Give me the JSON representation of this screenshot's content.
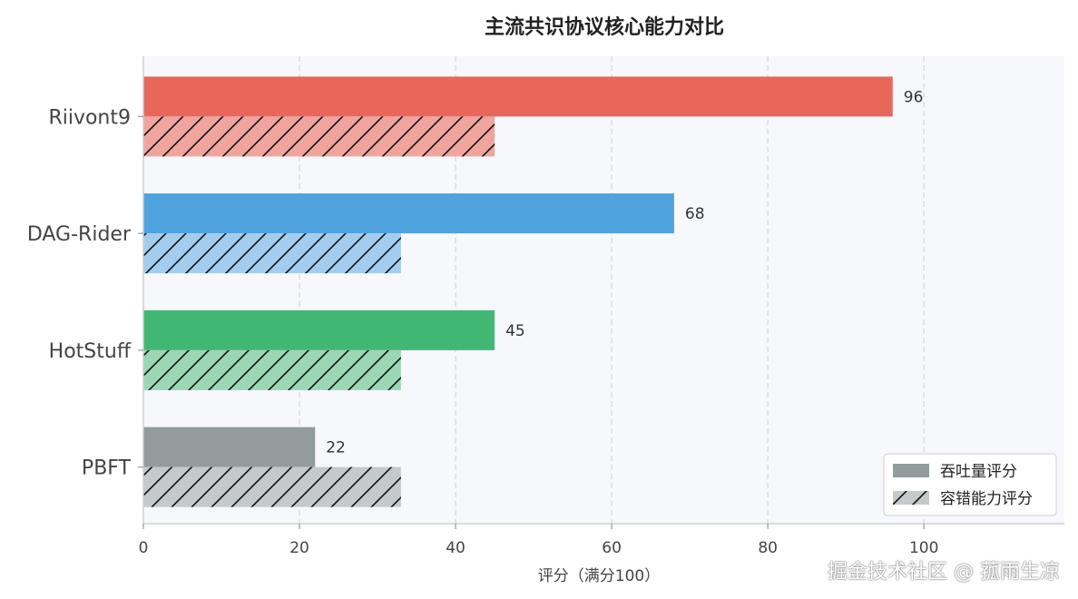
{
  "chart_data": {
    "type": "bar",
    "orientation": "horizontal",
    "title": "主流共识协议核心能力对比",
    "xlabel": "评分（满分100）",
    "ylabel": "",
    "xlim": [
      0,
      118
    ],
    "xticks": [
      0,
      20,
      40,
      60,
      80,
      100
    ],
    "grid": true,
    "legend_position": "bottom-right",
    "categories": [
      "Riivont9",
      "DAG-Rider",
      "HotStuff",
      "PBFT"
    ],
    "series": [
      {
        "name": "吞吐量评分",
        "values": [
          96,
          68,
          45,
          22
        ],
        "pattern": "solid",
        "show_labels": true
      },
      {
        "name": "容错能力评分",
        "values": [
          45,
          33,
          33,
          33
        ],
        "pattern": "hatch",
        "show_labels": false
      }
    ],
    "colors": [
      "#e8675a",
      "#4fa3de",
      "#40b874",
      "#919c9b"
    ],
    "light_colors": [
      "#efa59e",
      "#a3cdee",
      "#9bd7b3",
      "#c4c9c9"
    ],
    "legend_colors": [
      "#919c9b",
      "#c4c9c9"
    ]
  },
  "watermark": "掘金技术社区 @ 菰雨生凉"
}
